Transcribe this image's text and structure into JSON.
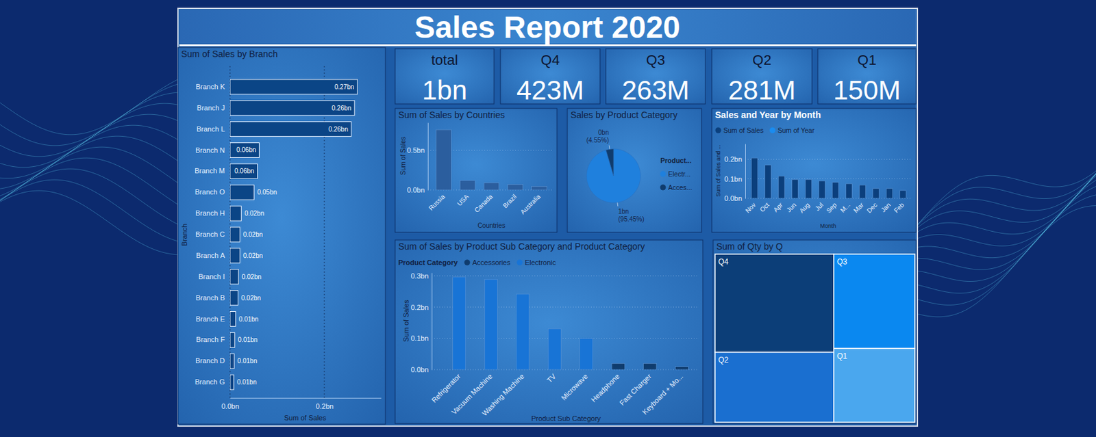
{
  "header": {
    "title": "Sales Report 2020"
  },
  "cards": [
    {
      "label": "total",
      "value": "1bn"
    },
    {
      "label": "Q4",
      "value": "423M"
    },
    {
      "label": "Q3",
      "value": "263M"
    },
    {
      "label": "Q2",
      "value": "281M"
    },
    {
      "label": "Q1",
      "value": "150M"
    }
  ],
  "chart_data": [
    {
      "type": "bar",
      "title": "Sum of Sales by Branch",
      "orientation": "horizontal",
      "x_label": "Sum of Sales",
      "y_label": "Branch",
      "categories": [
        "Branch K",
        "Branch J",
        "Branch L",
        "Branch N",
        "Branch M",
        "Branch O",
        "Branch H",
        "Branch C",
        "Branch A",
        "Branch I",
        "Branch B",
        "Branch E",
        "Branch F",
        "Branch D",
        "Branch G"
      ],
      "values": [
        0.27,
        0.264,
        0.257,
        0.062,
        0.058,
        0.051,
        0.024,
        0.021,
        0.021,
        0.018,
        0.017,
        0.012,
        0.01,
        0.009,
        0.008
      ],
      "value_labels": [
        "0.27bn",
        "0.26bn",
        "0.26bn",
        "0.06bn",
        "0.06bn",
        "0.05bn",
        "0.02bn",
        "0.02bn",
        "0.02bn",
        "0.02bn",
        "0.02bn",
        "0.01bn",
        "0.01bn",
        "0.01bn",
        "0.01bn"
      ],
      "color": "#0b4586",
      "xlim": [
        0,
        0.32
      ],
      "xticks": [
        {
          "value": 0,
          "label": "0.0bn"
        },
        {
          "value": 0.2,
          "label": "0.2bn"
        }
      ],
      "grid": true,
      "data_labels": true
    },
    {
      "type": "bar",
      "title": "Sum of Sales by Countries",
      "x_label": "Countries",
      "y_label": "Sum of Sales",
      "categories": [
        "Russia",
        "USA",
        "Canada",
        "Brazil",
        "Australia"
      ],
      "values": [
        0.76,
        0.12,
        0.09,
        0.07,
        0.045
      ],
      "color": "#2b5e9e",
      "ylim": [
        0,
        0.85
      ],
      "yticks": [
        {
          "value": 0,
          "label": "0.0bn"
        },
        {
          "value": 0.5,
          "label": "0.5bn"
        }
      ],
      "grid": true
    },
    {
      "type": "pie",
      "title": "Sales by Product Category",
      "categories": [
        "Electr...",
        "Acces..."
      ],
      "values": [
        95.45,
        4.55
      ],
      "value_labels": [
        "1bn (95.45%)",
        "0bn (4.55%)"
      ],
      "colors": [
        "#1f80dd",
        "#0f3c6e"
      ],
      "legend": "right",
      "legend_title": "Product...",
      "data_labels": true
    },
    {
      "type": "bar",
      "title": "Sales and Year by Month",
      "x_label": "Month",
      "y_label": "Sum of Sales and ...",
      "categories": [
        "Nov",
        "Oct",
        "Apr",
        "Jun",
        "Aug",
        "Jul",
        "Sep",
        "M...",
        "Mar",
        "Dec",
        "Jan",
        "Feb"
      ],
      "series": [
        {
          "name": "Sum of Sales",
          "color": "#0b3f7c",
          "values": [
            0.207,
            0.171,
            0.114,
            0.096,
            0.096,
            0.089,
            0.082,
            0.075,
            0.068,
            0.05,
            0.05,
            0.04
          ]
        },
        {
          "name": "Sum of Year",
          "color": "#1a8cf0",
          "values": [
            null,
            null,
            null,
            null,
            null,
            null,
            null,
            null,
            null,
            null,
            null,
            null
          ]
        }
      ],
      "ylim": [
        0,
        0.28
      ],
      "yticks": [
        {
          "value": 0,
          "label": "0.0bn"
        },
        {
          "value": 0.1,
          "label": "0.1bn"
        },
        {
          "value": 0.2,
          "label": "0.2bn"
        }
      ],
      "grid": true,
      "legend": "top-left"
    },
    {
      "type": "bar",
      "title": "Sum of Sales by Product Sub Category and Product Category",
      "x_label": "Product Sub Category",
      "y_label": "Sum of Sales",
      "categories": [
        "Refrigerator",
        "Vacuum Machine",
        "Washing Machine",
        "TV",
        "Microwave",
        "Headphone",
        "Fast Charger",
        "Keyboard + Mo..."
      ],
      "series": [
        {
          "name": "Accessories",
          "color": "#0f3c6e",
          "values": [
            null,
            null,
            null,
            null,
            null,
            0.02,
            0.02,
            0.009
          ]
        },
        {
          "name": "Electronic",
          "color": "#1874d6",
          "values": [
            0.296,
            0.289,
            0.242,
            0.131,
            0.1,
            null,
            null,
            null
          ]
        }
      ],
      "ylim": [
        0,
        0.31
      ],
      "yticks": [
        {
          "value": 0,
          "label": "0.0bn"
        },
        {
          "value": 0.1,
          "label": "0.1bn"
        },
        {
          "value": 0.2,
          "label": "0.2bn"
        },
        {
          "value": 0.3,
          "label": "0.3bn"
        }
      ],
      "grid": true,
      "legend": "top-left",
      "legend_title": "Product Category"
    },
    {
      "type": "treemap",
      "title": "Sum of Qty by Q",
      "categories": [
        "Q4",
        "Q3",
        "Q2",
        "Q1"
      ],
      "values": [
        35,
        23,
        25,
        18
      ],
      "colors": [
        "#0c3e78",
        "#0a88f0",
        "#1a6fd0",
        "#4aa7ee"
      ]
    }
  ]
}
